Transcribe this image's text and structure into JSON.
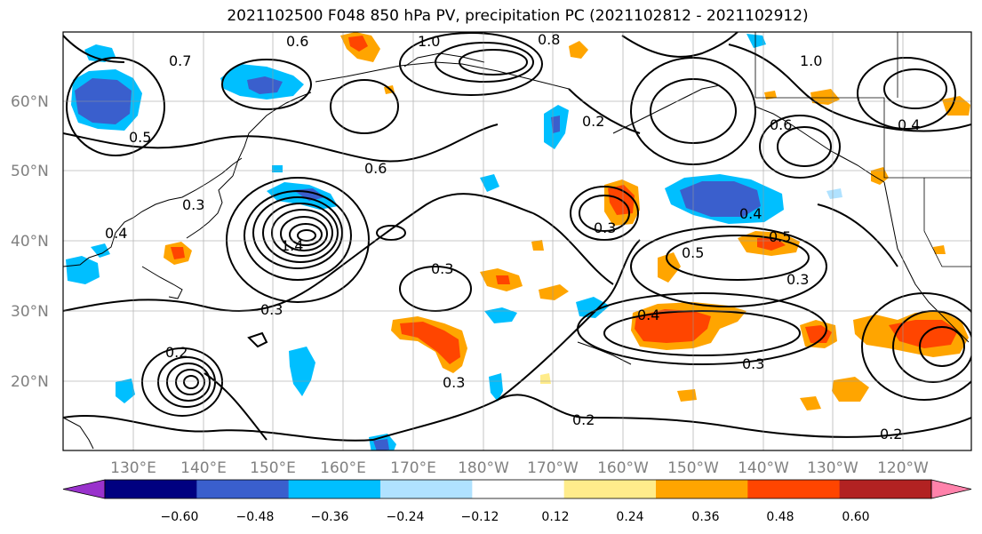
{
  "title": "2021102500 F048 850 hPa PV, precipitation PC (2021102812 - 2021102912)",
  "lat_labels": [
    "60°N",
    "50°N",
    "40°N",
    "30°N",
    "20°N"
  ],
  "lon_labels": [
    "130°E",
    "140°E",
    "150°E",
    "160°E",
    "170°E",
    "180°W",
    "170°W",
    "160°W",
    "150°W",
    "140°W",
    "130°W",
    "120°W"
  ],
  "colorbar": {
    "tick_labels": [
      "−0.60",
      "−0.48",
      "−0.36",
      "−0.24",
      "−0.12",
      "0.12",
      "0.24",
      "0.36",
      "0.48",
      "0.60"
    ],
    "colors": [
      "#9932cc",
      "#000080",
      "#3a5fcd",
      "#00bfff",
      "#b0e2ff",
      "#ffffff",
      "#ffec8b",
      "#ffa500",
      "#ff4500",
      "#b22222",
      "#ff82ab"
    ]
  },
  "contour_labels": [
    "0.6",
    "0.7",
    "0.5",
    "0.3",
    "0.4",
    "1.0",
    "0.8",
    "0.2",
    "0.6",
    "0.3",
    "0.3",
    "0.4",
    "0.5",
    "0.3",
    "0.4",
    "0.3",
    "0.5",
    "0.4",
    "0.2",
    "0.2",
    "0.6",
    "0.3",
    "0.3",
    "0.2",
    "1.4",
    "1.0"
  ]
}
